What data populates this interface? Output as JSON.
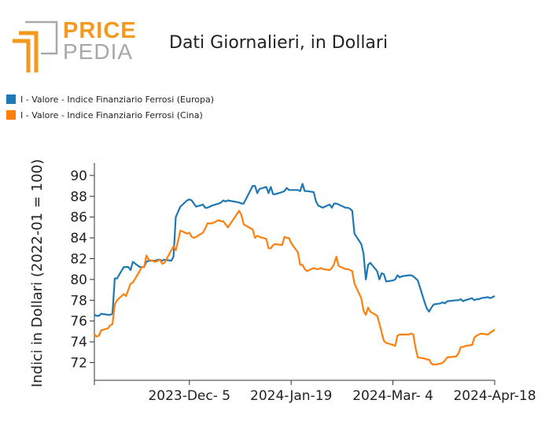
{
  "brand": {
    "top": "PRICE",
    "bottom": "PEDIA"
  },
  "colors": {
    "europa": "#1f77b4",
    "cina": "#ff7f0e",
    "logo_orange": "#f39a1e",
    "logo_gray": "#a8a8a8"
  },
  "chart_data": {
    "type": "line",
    "title": "Dati Giornalieri, in Dollari",
    "ylabel": "Indici in Dollari (2022-01 = 100)",
    "xlabel": "",
    "ylim": [
      70.3,
      91.2
    ],
    "yticks": [
      72,
      74,
      76,
      78,
      80,
      82,
      84,
      86,
      88,
      90
    ],
    "xlim": [
      "2023-10-24",
      "2024-04-18"
    ],
    "xticks": [
      "2023-10-24",
      "2023-12-05",
      "2024-01-19",
      "2024-03-04",
      "2024-04-18"
    ],
    "xtick_labels": [
      "",
      "2023-Dec- 5",
      "2024-Jan-19",
      "2024-Mar- 4",
      "2024-Apr-18"
    ],
    "legend_position": "top-left",
    "grid": false,
    "series": [
      {
        "name": "I - Valore - Indice Finanziario Ferrosi (Europa)",
        "color": "#1f77b4",
        "x": [
          "2023-10-24",
          "2023-10-25",
          "2023-10-26",
          "2023-10-27",
          "2023-10-30",
          "2023-10-31",
          "2023-11-01",
          "2023-11-02",
          "2023-11-03",
          "2023-11-06",
          "2023-11-07",
          "2023-11-08",
          "2023-11-09",
          "2023-11-10",
          "2023-11-13",
          "2023-11-14",
          "2023-11-15",
          "2023-11-16",
          "2023-11-17",
          "2023-11-20",
          "2023-11-21",
          "2023-11-22",
          "2023-11-23",
          "2023-11-24",
          "2023-11-27",
          "2023-11-28",
          "2023-11-29",
          "2023-11-30",
          "2023-12-01",
          "2023-12-04",
          "2023-12-05",
          "2023-12-06",
          "2023-12-07",
          "2023-12-08",
          "2023-12-11",
          "2023-12-12",
          "2023-12-13",
          "2023-12-14",
          "2023-12-15",
          "2023-12-18",
          "2023-12-19",
          "2023-12-20",
          "2023-12-21",
          "2023-12-22",
          "2023-12-27",
          "2023-12-28",
          "2023-12-29",
          "2024-01-02",
          "2024-01-03",
          "2024-01-04",
          "2024-01-05",
          "2024-01-08",
          "2024-01-09",
          "2024-01-10",
          "2024-01-11",
          "2024-01-12",
          "2024-01-15",
          "2024-01-16",
          "2024-01-17",
          "2024-01-18",
          "2024-01-19",
          "2024-01-22",
          "2024-01-23",
          "2024-01-24",
          "2024-01-25",
          "2024-01-26",
          "2024-01-29",
          "2024-01-30",
          "2024-01-31",
          "2024-02-01",
          "2024-02-02",
          "2024-02-05",
          "2024-02-06",
          "2024-02-07",
          "2024-02-08",
          "2024-02-09",
          "2024-02-12",
          "2024-02-13",
          "2024-02-14",
          "2024-02-15",
          "2024-02-16",
          "2024-02-19",
          "2024-02-20",
          "2024-02-21",
          "2024-02-22",
          "2024-02-23",
          "2024-02-26",
          "2024-02-27",
          "2024-02-28",
          "2024-02-29",
          "2024-03-01",
          "2024-03-04",
          "2024-03-05",
          "2024-03-06",
          "2024-03-07",
          "2024-03-08",
          "2024-03-11",
          "2024-03-12",
          "2024-03-13",
          "2024-03-14",
          "2024-03-15",
          "2024-03-18",
          "2024-03-19",
          "2024-03-20",
          "2024-03-21",
          "2024-03-22",
          "2024-03-25",
          "2024-03-26",
          "2024-03-27",
          "2024-03-28",
          "2024-04-01",
          "2024-04-02",
          "2024-04-03",
          "2024-04-04",
          "2024-04-05",
          "2024-04-08",
          "2024-04-09",
          "2024-04-10",
          "2024-04-11",
          "2024-04-12",
          "2024-04-15",
          "2024-04-16",
          "2024-04-17",
          "2024-04-18"
        ],
        "values": [
          76.6,
          76.5,
          76.5,
          76.7,
          76.6,
          76.6,
          76.7,
          80.1,
          80.1,
          81.2,
          81.2,
          81.2,
          80.9,
          81.7,
          81.2,
          81.2,
          81.2,
          81.7,
          81.8,
          81.8,
          81.9,
          81.9,
          81.8,
          81.9,
          81.8,
          82.2,
          86.0,
          86.5,
          87.0,
          87.6,
          87.7,
          87.6,
          87.3,
          87.0,
          87.2,
          86.9,
          86.9,
          87.0,
          87.1,
          87.3,
          87.4,
          87.6,
          87.5,
          87.6,
          87.4,
          87.3,
          87.3,
          89.0,
          89.0,
          88.3,
          88.7,
          88.9,
          88.3,
          88.9,
          88.2,
          88.2,
          88.4,
          88.5,
          88.8,
          88.6,
          88.6,
          88.6,
          88.5,
          89.2,
          88.5,
          88.5,
          88.4,
          87.5,
          87.1,
          87.0,
          86.9,
          87.2,
          86.9,
          87.3,
          87.3,
          87.2,
          86.9,
          86.9,
          86.8,
          86.6,
          84.4,
          83.4,
          82.5,
          80.0,
          81.4,
          81.6,
          80.8,
          80.0,
          80.6,
          80.5,
          79.8,
          79.9,
          80.0,
          80.4,
          80.2,
          80.3,
          80.4,
          80.4,
          80.3,
          80.1,
          79.9,
          77.8,
          77.2,
          76.9,
          77.3,
          77.6,
          77.7,
          77.8,
          77.7,
          77.9,
          78.0,
          78.0,
          78.1,
          77.9,
          78.0,
          78.2,
          78.0,
          78.1,
          78.1,
          78.2,
          78.3,
          78.2,
          78.3,
          78.4
        ]
      },
      {
        "name": "I - Valore - Indice Finanziario Ferrosi (Cina)",
        "color": "#ff7f0e",
        "x": [
          "2023-10-24",
          "2023-10-25",
          "2023-10-26",
          "2023-10-27",
          "2023-10-30",
          "2023-10-31",
          "2023-11-01",
          "2023-11-02",
          "2023-11-03",
          "2023-11-06",
          "2023-11-07",
          "2023-11-08",
          "2023-11-09",
          "2023-11-10",
          "2023-11-13",
          "2023-11-14",
          "2023-11-15",
          "2023-11-16",
          "2023-11-17",
          "2023-11-20",
          "2023-11-21",
          "2023-11-22",
          "2023-11-23",
          "2023-11-24",
          "2023-11-27",
          "2023-11-28",
          "2023-11-29",
          "2023-11-30",
          "2023-12-01",
          "2023-12-04",
          "2023-12-05",
          "2023-12-06",
          "2023-12-07",
          "2023-12-08",
          "2023-12-11",
          "2023-12-12",
          "2023-12-13",
          "2023-12-14",
          "2023-12-15",
          "2023-12-18",
          "2023-12-19",
          "2023-12-20",
          "2023-12-21",
          "2023-12-22",
          "2023-12-27",
          "2023-12-28",
          "2023-12-29",
          "2024-01-02",
          "2024-01-03",
          "2024-01-04",
          "2024-01-05",
          "2024-01-08",
          "2024-01-09",
          "2024-01-10",
          "2024-01-11",
          "2024-01-12",
          "2024-01-15",
          "2024-01-16",
          "2024-01-17",
          "2024-01-18",
          "2024-01-19",
          "2024-01-22",
          "2024-01-23",
          "2024-01-24",
          "2024-01-25",
          "2024-01-26",
          "2024-01-29",
          "2024-01-30",
          "2024-01-31",
          "2024-02-01",
          "2024-02-02",
          "2024-02-05",
          "2024-02-06",
          "2024-02-07",
          "2024-02-08",
          "2024-02-09",
          "2024-02-12",
          "2024-02-13",
          "2024-02-14",
          "2024-02-15",
          "2024-02-16",
          "2024-02-19",
          "2024-02-20",
          "2024-02-21",
          "2024-02-22",
          "2024-02-23",
          "2024-02-26",
          "2024-02-27",
          "2024-02-28",
          "2024-02-29",
          "2024-03-01",
          "2024-03-04",
          "2024-03-05",
          "2024-03-06",
          "2024-03-07",
          "2024-03-08",
          "2024-03-11",
          "2024-03-12",
          "2024-03-13",
          "2024-03-14",
          "2024-03-15",
          "2024-03-18",
          "2024-03-19",
          "2024-03-20",
          "2024-03-21",
          "2024-03-22",
          "2024-03-25",
          "2024-03-26",
          "2024-03-27",
          "2024-03-28",
          "2024-04-01",
          "2024-04-02",
          "2024-04-03",
          "2024-04-04",
          "2024-04-05",
          "2024-04-08",
          "2024-04-09",
          "2024-04-10",
          "2024-04-11",
          "2024-04-12",
          "2024-04-15",
          "2024-04-16",
          "2024-04-17",
          "2024-04-18"
        ],
        "values": [
          74.7,
          74.5,
          74.6,
          75.1,
          75.3,
          75.6,
          75.7,
          77.6,
          78.0,
          78.6,
          78.4,
          79.0,
          79.6,
          79.7,
          80.8,
          81.2,
          81.2,
          82.3,
          81.9,
          81.7,
          81.8,
          81.9,
          81.5,
          81.6,
          82.8,
          83.2,
          82.8,
          83.7,
          84.7,
          84.4,
          84.5,
          84.1,
          84.0,
          84.1,
          84.5,
          84.9,
          85.4,
          85.4,
          85.4,
          85.7,
          85.6,
          85.6,
          85.3,
          85.0,
          86.6,
          86.2,
          85.3,
          84.8,
          84.0,
          84.2,
          84.1,
          83.9,
          83.0,
          83.0,
          83.3,
          83.4,
          83.3,
          84.1,
          84.0,
          84.0,
          83.5,
          82.6,
          81.4,
          81.4,
          81.0,
          80.8,
          81.1,
          81.0,
          81.0,
          81.1,
          81.0,
          80.9,
          81.1,
          81.5,
          82.2,
          81.3,
          81.0,
          81.0,
          80.9,
          80.8,
          79.6,
          78.2,
          77.0,
          76.6,
          77.3,
          76.9,
          76.5,
          75.8,
          74.9,
          74.1,
          73.9,
          73.7,
          73.6,
          74.6,
          74.7,
          74.7,
          74.7,
          74.8,
          74.7,
          73.4,
          72.5,
          72.4,
          72.3,
          72.3,
          71.9,
          71.8,
          71.9,
          72.0,
          72.2,
          72.5,
          72.6,
          72.9,
          73.5,
          73.5,
          73.6,
          73.7,
          74.4,
          74.6,
          74.7,
          74.8,
          74.7,
          74.9,
          75.0,
          75.2
        ]
      }
    ]
  }
}
